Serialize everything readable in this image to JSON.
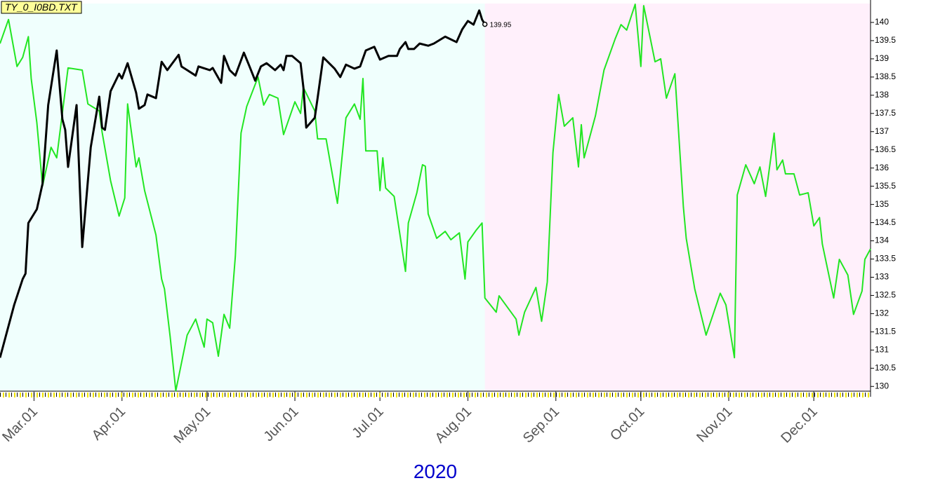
{
  "chart_data": {
    "type": "line",
    "title": "TY_0_I0BD.TXT",
    "year_label": "2020",
    "xlim": [
      "2020-02-18",
      "2020-12-21"
    ],
    "xticks": [
      {
        "value": "2020-03-01",
        "label": "Mar.01"
      },
      {
        "value": "2020-04-01",
        "label": "Apr.01"
      },
      {
        "value": "2020-05-01",
        "label": "May.01"
      },
      {
        "value": "2020-06-01",
        "label": "Jun.01"
      },
      {
        "value": "2020-07-01",
        "label": "Jul.01"
      },
      {
        "value": "2020-08-01",
        "label": "Aug.01"
      },
      {
        "value": "2020-09-01",
        "label": "Sep.01"
      },
      {
        "value": "2020-10-01",
        "label": "Oct.01"
      },
      {
        "value": "2020-11-01",
        "label": "Nov.01"
      },
      {
        "value": "2020-12-01",
        "label": "Dec.01"
      }
    ],
    "ylim": [
      129.87,
      140.52
    ],
    "yticks": [
      130,
      130.5,
      131,
      131.5,
      132,
      132.5,
      133,
      133.5,
      134,
      134.5,
      135,
      135.5,
      136,
      136.5,
      137,
      137.5,
      138,
      138.5,
      139,
      139.5,
      140
    ],
    "background_regions": [
      {
        "from": "2020-02-18",
        "to": "2020-08-07",
        "color": "#f0fffd"
      },
      {
        "from": "2020-08-07",
        "to": "2020-12-21",
        "color": "#fff0fb"
      }
    ],
    "series": [
      {
        "color": "#000000",
        "end_label": true,
        "x": [
          "2020-02-18",
          "2020-02-20",
          "2020-02-23",
          "2020-02-26",
          "2020-02-27",
          "2020-02-28",
          "2020-03-02",
          "2020-03-04",
          "2020-03-06",
          "2020-03-09",
          "2020-03-11",
          "2020-03-12",
          "2020-03-13",
          "2020-03-16",
          "2020-03-18",
          "2020-03-21",
          "2020-03-24",
          "2020-03-25",
          "2020-03-26",
          "2020-03-28",
          "2020-03-31",
          "2020-04-01",
          "2020-04-03",
          "2020-04-06",
          "2020-04-07",
          "2020-04-09",
          "2020-04-10",
          "2020-04-13",
          "2020-04-15",
          "2020-04-17",
          "2020-04-21",
          "2020-04-22",
          "2020-04-24",
          "2020-04-27",
          "2020-04-28",
          "2020-05-02",
          "2020-05-03",
          "2020-05-06",
          "2020-05-07",
          "2020-05-09",
          "2020-05-11",
          "2020-05-14",
          "2020-05-16",
          "2020-05-18",
          "2020-05-20",
          "2020-05-22",
          "2020-05-25",
          "2020-05-27",
          "2020-05-28",
          "2020-05-29",
          "2020-05-31",
          "2020-06-03",
          "2020-06-04",
          "2020-06-05",
          "2020-06-08",
          "2020-06-09",
          "2020-06-11",
          "2020-06-15",
          "2020-06-17",
          "2020-06-19",
          "2020-06-22",
          "2020-06-24",
          "2020-06-26",
          "2020-06-29",
          "2020-07-01",
          "2020-07-04",
          "2020-07-07",
          "2020-07-08",
          "2020-07-10",
          "2020-07-11",
          "2020-07-13",
          "2020-07-15",
          "2020-07-18",
          "2020-07-20",
          "2020-07-24",
          "2020-07-28",
          "2020-07-30",
          "2020-08-01",
          "2020-08-03",
          "2020-08-05",
          "2020-08-06",
          "2020-08-07"
        ],
        "values": [
          130.79,
          131.37,
          132.24,
          132.95,
          133.1,
          134.49,
          134.87,
          135.57,
          137.73,
          139.23,
          137.34,
          137.05,
          136.03,
          137.73,
          133.83,
          136.57,
          137.96,
          137.11,
          137.05,
          138.11,
          138.59,
          138.46,
          138.88,
          138.07,
          137.63,
          137.73,
          138.02,
          137.92,
          138.92,
          138.69,
          139.11,
          138.79,
          138.69,
          138.54,
          138.79,
          138.69,
          138.75,
          138.34,
          139.08,
          138.69,
          138.54,
          139.17,
          138.79,
          138.4,
          138.79,
          138.88,
          138.69,
          138.84,
          138.69,
          139.08,
          139.08,
          138.88,
          138.21,
          137.11,
          137.38,
          137.92,
          139.04,
          138.73,
          138.5,
          138.84,
          138.73,
          138.79,
          139.23,
          139.33,
          138.98,
          139.08,
          139.08,
          139.27,
          139.46,
          139.27,
          139.27,
          139.42,
          139.36,
          139.42,
          139.61,
          139.46,
          139.81,
          140.04,
          139.94,
          140.33,
          140.08,
          139.95
        ]
      },
      {
        "color": "#22e622",
        "x": [
          "2020-02-18",
          "2020-02-21",
          "2020-02-24",
          "2020-02-26",
          "2020-02-28",
          "2020-02-29",
          "2020-03-02",
          "2020-03-04",
          "2020-03-07",
          "2020-03-09",
          "2020-03-13",
          "2020-03-18",
          "2020-03-20",
          "2020-03-24",
          "2020-03-25",
          "2020-03-28",
          "2020-03-31",
          "2020-04-02",
          "2020-04-03",
          "2020-04-06",
          "2020-04-07",
          "2020-04-09",
          "2020-04-13",
          "2020-04-15",
          "2020-04-16",
          "2020-04-18",
          "2020-04-20",
          "2020-04-24",
          "2020-04-27",
          "2020-04-30",
          "2020-05-01",
          "2020-05-03",
          "2020-05-05",
          "2020-05-07",
          "2020-05-09",
          "2020-05-11",
          "2020-05-13",
          "2020-05-15",
          "2020-05-19",
          "2020-05-21",
          "2020-05-23",
          "2020-05-26",
          "2020-05-28",
          "2020-06-01",
          "2020-06-03",
          "2020-06-04",
          "2020-06-08",
          "2020-06-09",
          "2020-06-12",
          "2020-06-16",
          "2020-06-19",
          "2020-06-22",
          "2020-06-24",
          "2020-06-25",
          "2020-06-26",
          "2020-06-30",
          "2020-07-01",
          "2020-07-02",
          "2020-07-03",
          "2020-07-06",
          "2020-07-10",
          "2020-07-11",
          "2020-07-14",
          "2020-07-16",
          "2020-07-17",
          "2020-07-18",
          "2020-07-21",
          "2020-07-24",
          "2020-07-26",
          "2020-07-29",
          "2020-07-31",
          "2020-08-01",
          "2020-08-04",
          "2020-08-06",
          "2020-08-07",
          "2020-08-11",
          "2020-08-12",
          "2020-08-18",
          "2020-08-19",
          "2020-08-21",
          "2020-08-25",
          "2020-08-27",
          "2020-08-29",
          "2020-08-31",
          "2020-09-02",
          "2020-09-04",
          "2020-09-07",
          "2020-09-09",
          "2020-09-10",
          "2020-09-11",
          "2020-09-15",
          "2020-09-18",
          "2020-09-22",
          "2020-09-24",
          "2020-09-26",
          "2020-09-29",
          "2020-10-01",
          "2020-10-02",
          "2020-10-06",
          "2020-10-08",
          "2020-10-10",
          "2020-10-13",
          "2020-10-16",
          "2020-10-17",
          "2020-10-20",
          "2020-10-24",
          "2020-10-29",
          "2020-10-31",
          "2020-11-03",
          "2020-11-04",
          "2020-11-07",
          "2020-11-10",
          "2020-11-12",
          "2020-11-14",
          "2020-11-17",
          "2020-11-18",
          "2020-11-20",
          "2020-11-21",
          "2020-11-24",
          "2020-11-26",
          "2020-11-29",
          "2020-12-01",
          "2020-12-03",
          "2020-12-04",
          "2020-12-08",
          "2020-12-10",
          "2020-12-13",
          "2020-12-15",
          "2020-12-18",
          "2020-12-19",
          "2020-12-21"
        ],
        "values": [
          139.42,
          140.08,
          138.79,
          139.04,
          139.61,
          138.46,
          137.24,
          135.51,
          136.57,
          136.28,
          138.75,
          138.69,
          137.76,
          137.57,
          136.99,
          135.65,
          134.68,
          135.18,
          137.76,
          136.03,
          136.28,
          135.38,
          134.16,
          132.95,
          132.68,
          131.37,
          129.88,
          131.41,
          131.85,
          131.08,
          131.85,
          131.75,
          130.83,
          131.98,
          131.6,
          133.58,
          136.96,
          137.69,
          138.5,
          137.73,
          138.02,
          137.92,
          136.92,
          137.82,
          137.5,
          138.21,
          137.57,
          136.8,
          136.8,
          135.03,
          137.38,
          137.76,
          137.34,
          138.46,
          136.47,
          136.47,
          135.38,
          136.28,
          135.45,
          135.22,
          133.16,
          134.49,
          135.32,
          136.09,
          136.05,
          134.74,
          134.07,
          134.26,
          134.03,
          134.22,
          132.95,
          133.97,
          134.3,
          134.49,
          132.43,
          132.04,
          132.49,
          131.85,
          131.41,
          132.04,
          132.72,
          131.79,
          132.87,
          136.42,
          138.02,
          137.15,
          137.38,
          136.03,
          137.19,
          136.28,
          137.44,
          138.69,
          139.56,
          139.94,
          139.79,
          140.5,
          138.79,
          140.46,
          138.92,
          139.0,
          137.92,
          138.59,
          134.93,
          134.07,
          132.68,
          131.41,
          132.56,
          132.24,
          130.79,
          135.26,
          136.09,
          135.57,
          136.03,
          135.22,
          136.96,
          135.95,
          136.22,
          135.84,
          135.84,
          135.26,
          135.32,
          134.41,
          134.64,
          133.91,
          132.43,
          133.49,
          133.06,
          131.98,
          132.62,
          133.49,
          133.78
        ]
      }
    ]
  }
}
